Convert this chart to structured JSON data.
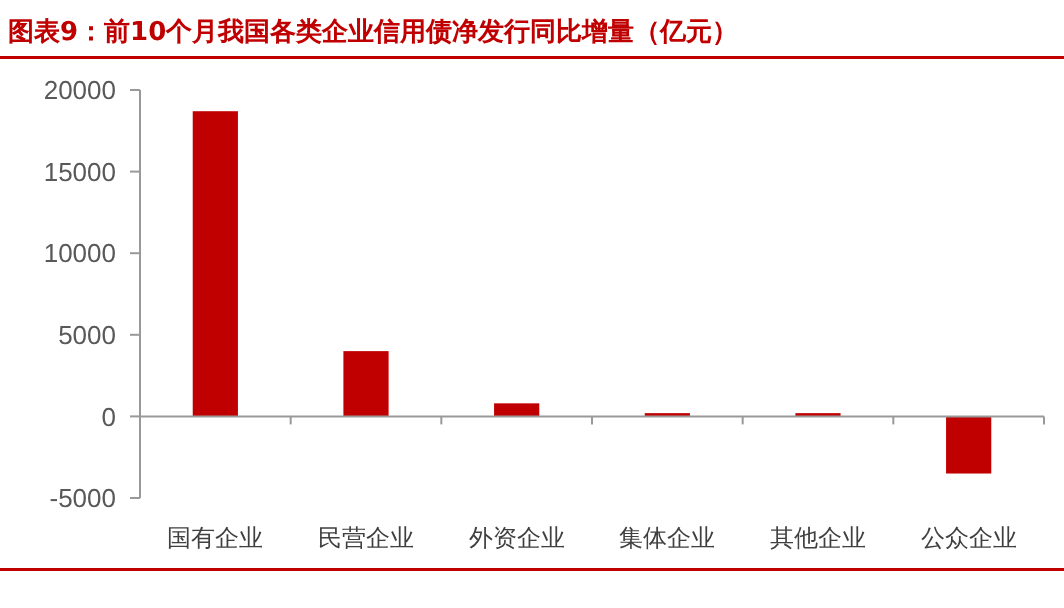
{
  "chart_data": {
    "type": "bar",
    "title": "图表9：前10个月我国各类企业信用债净发行同比增量（亿元）",
    "categories": [
      "国有企业",
      "民营企业",
      "外资企业",
      "集体企业",
      "其他企业",
      "公众企业"
    ],
    "values": [
      18700,
      4000,
      800,
      200,
      200,
      -3500
    ],
    "color": "#c00000",
    "ylim": [
      -5000,
      20000
    ],
    "yticks": [
      -5000,
      0,
      5000,
      10000,
      15000,
      20000
    ]
  }
}
